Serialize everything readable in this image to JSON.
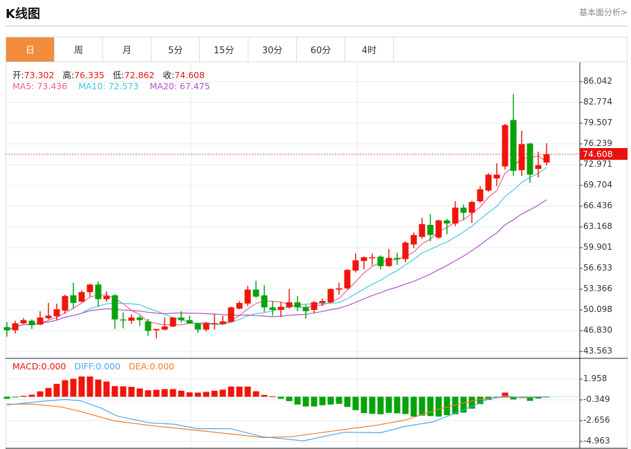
{
  "header": {
    "title": "K线图",
    "link": "基本面分析>"
  },
  "tabs": [
    {
      "label": "日",
      "active": true
    },
    {
      "label": "周"
    },
    {
      "label": "月"
    },
    {
      "label": "5分"
    },
    {
      "label": "15分"
    },
    {
      "label": "30分"
    },
    {
      "label": "60分"
    },
    {
      "label": "4时"
    }
  ],
  "info": {
    "open_label": "开:",
    "open": "73.302",
    "high_label": "高:",
    "high": "76.335",
    "low_label": "低:",
    "low": "72.862",
    "close_label": "收:",
    "close": "74.608",
    "ma5": "MA5: 73.436",
    "ma10": "MA10: 72.573",
    "ma20": "MA20: 67.475"
  },
  "macd_info": {
    "macd": "MACD:0.000",
    "diff": "DIFF:0.000",
    "dea": "DEA:0.000"
  },
  "colors": {
    "up": "#f0150a",
    "down": "#07a30b",
    "ma5": "#f0608a",
    "ma10": "#3ec8e0",
    "ma20": "#b152c9",
    "diff": "#4aa5f0",
    "dea": "#f57a20",
    "accent": "#f28c3c"
  },
  "chart_data": [
    {
      "type": "candlestick",
      "current_price": "74.608",
      "ylim": [
        43.563,
        86.042
      ],
      "y_ticks": [
        "86.042",
        "82.774",
        "79.507",
        "76.239",
        "72.971",
        "69.704",
        "66.436",
        "63.168",
        "59.901",
        "56.633",
        "53.366",
        "50.098",
        "46.830",
        "43.563"
      ],
      "ohlc": [
        [
          47.4,
          48.2,
          45.9,
          46.9
        ],
        [
          46.9,
          48.4,
          46.4,
          48.0
        ],
        [
          48.0,
          48.8,
          47.9,
          48.5
        ],
        [
          48.4,
          48.6,
          47.1,
          47.7
        ],
        [
          47.8,
          49.9,
          47.7,
          48.9
        ],
        [
          48.8,
          51.2,
          48.6,
          49.2
        ],
        [
          49.1,
          51.1,
          48.5,
          50.2
        ],
        [
          50.0,
          52.5,
          49.5,
          52.3
        ],
        [
          52.4,
          54.4,
          50.3,
          51.2
        ],
        [
          51.4,
          53.2,
          51.3,
          52.9
        ],
        [
          52.9,
          54.2,
          52.2,
          54.1
        ],
        [
          54.1,
          54.6,
          50.6,
          51.8
        ],
        [
          51.8,
          53.0,
          51.4,
          52.3
        ],
        [
          52.4,
          52.6,
          47.1,
          48.6
        ],
        [
          48.6,
          49.7,
          47.2,
          48.5
        ],
        [
          48.4,
          49.4,
          47.9,
          48.9
        ],
        [
          48.9,
          49.2,
          47.6,
          48.5
        ],
        [
          48.3,
          48.7,
          46.0,
          46.8
        ],
        [
          46.9,
          47.1,
          45.6,
          47.1
        ],
        [
          47.0,
          48.9,
          46.9,
          47.5
        ],
        [
          47.5,
          49.0,
          47.4,
          48.9
        ],
        [
          48.9,
          49.9,
          48.1,
          48.5
        ],
        [
          48.5,
          49.2,
          47.9,
          48.0
        ],
        [
          48.0,
          48.1,
          46.5,
          47.0
        ],
        [
          47.0,
          48.2,
          46.7,
          48.0
        ],
        [
          47.9,
          49.5,
          47.0,
          48.0
        ],
        [
          47.9,
          49.2,
          47.8,
          48.3
        ],
        [
          48.2,
          50.6,
          48.1,
          50.5
        ],
        [
          50.3,
          51.5,
          50.2,
          51.2
        ],
        [
          51.1,
          53.9,
          50.7,
          53.3
        ],
        [
          53.3,
          54.7,
          52.0,
          52.2
        ],
        [
          52.4,
          54.0,
          49.8,
          50.5
        ],
        [
          50.5,
          51.5,
          49.2,
          50.1
        ],
        [
          50.1,
          51.3,
          49.0,
          50.6
        ],
        [
          50.5,
          53.4,
          50.3,
          51.3
        ],
        [
          51.3,
          52.3,
          49.9,
          50.5
        ],
        [
          50.5,
          50.9,
          48.7,
          49.9
        ],
        [
          50.1,
          51.5,
          49.6,
          51.3
        ],
        [
          51.2,
          51.9,
          50.7,
          51.5
        ],
        [
          51.3,
          53.5,
          51.2,
          53.4
        ],
        [
          53.3,
          54.4,
          52.5,
          53.5
        ],
        [
          53.5,
          56.5,
          53.3,
          56.4
        ],
        [
          56.3,
          59.0,
          56.0,
          57.9
        ],
        [
          57.8,
          58.5,
          56.5,
          58.4
        ],
        [
          58.3,
          59.0,
          57.1,
          58.4
        ],
        [
          58.5,
          58.7,
          56.5,
          57.0
        ],
        [
          57.0,
          59.7,
          56.9,
          58.3
        ],
        [
          58.3,
          59.1,
          57.2,
          58.1
        ],
        [
          58.1,
          60.9,
          57.6,
          60.7
        ],
        [
          60.4,
          62.3,
          59.8,
          61.9
        ],
        [
          61.6,
          64.6,
          61.3,
          63.6
        ],
        [
          63.5,
          65.2,
          60.9,
          61.9
        ],
        [
          61.5,
          64.3,
          61.3,
          64.2
        ],
        [
          64.2,
          64.4,
          62.0,
          63.7
        ],
        [
          63.7,
          67.2,
          63.3,
          66.2
        ],
        [
          66.2,
          66.7,
          64.3,
          65.4
        ],
        [
          65.4,
          67.3,
          63.8,
          67.1
        ],
        [
          67.2,
          69.6,
          67.0,
          69.1
        ],
        [
          68.9,
          71.6,
          68.7,
          71.4
        ],
        [
          70.8,
          73.2,
          69.6,
          71.4
        ],
        [
          72.7,
          79.4,
          72.2,
          79.2
        ],
        [
          80.0,
          84.1,
          71.2,
          72.0
        ],
        [
          72.1,
          78.3,
          71.2,
          76.2
        ],
        [
          76.3,
          76.4,
          70.1,
          71.4
        ],
        [
          72.3,
          75.0,
          71.0,
          72.9
        ],
        [
          73.302,
          76.335,
          72.862,
          74.608
        ]
      ],
      "ma_periods": [
        5,
        10,
        20
      ]
    },
    {
      "type": "macd",
      "ylim": [
        -4.963,
        1.958
      ],
      "y_ticks": [
        "1.958",
        "-0.349",
        "-2.656",
        "-4.963"
      ],
      "histogram": [
        -0.23,
        -0.05,
        0.1,
        0.23,
        0.6,
        0.97,
        1.43,
        1.84,
        2.0,
        2.25,
        2.25,
        1.9,
        1.69,
        1.18,
        1.15,
        1.1,
        0.92,
        0.72,
        0.77,
        0.85,
        0.85,
        0.67,
        0.49,
        0.46,
        0.54,
        0.67,
        0.79,
        1.13,
        1.13,
        1.13,
        0.61,
        0.2,
        0.03,
        -0.23,
        -0.49,
        -0.87,
        -1.08,
        -1.08,
        -0.95,
        -0.87,
        -0.79,
        -1.13,
        -1.49,
        -1.82,
        -1.9,
        -1.95,
        -1.79,
        -1.84,
        -1.92,
        -2.2,
        -2.1,
        -2.15,
        -2.2,
        -2.05,
        -1.95,
        -1.77,
        -1.33,
        -0.82,
        -0.36,
        -0.1,
        0.46,
        -0.3,
        -0.15,
        -0.46,
        -0.2,
        -0.05
      ],
      "diff": [
        [
          0,
          -0.92
        ],
        [
          3.1,
          -0.6
        ],
        [
          7,
          -0.3
        ],
        [
          8.9,
          -0.45
        ],
        [
          11.3,
          -1.25
        ],
        [
          13.3,
          -2.15
        ],
        [
          17.2,
          -2.9
        ],
        [
          20.1,
          -3.05
        ],
        [
          23,
          -3.55
        ],
        [
          26.9,
          -3.55
        ],
        [
          30.8,
          -4.45
        ],
        [
          35.7,
          -4.9
        ],
        [
          40.6,
          -3.95
        ],
        [
          45,
          -4.0
        ],
        [
          47.9,
          -3.3
        ],
        [
          51.3,
          -2.8
        ],
        [
          54.2,
          -1.77
        ],
        [
          58.1,
          -0.23
        ],
        [
          60,
          0.1
        ],
        [
          62,
          -0.1
        ],
        [
          65,
          0
        ]
      ],
      "dea": [
        [
          0,
          -0.82
        ],
        [
          3.1,
          -0.82
        ],
        [
          6.5,
          -1.13
        ],
        [
          8.9,
          -1.64
        ],
        [
          12.8,
          -2.66
        ],
        [
          17.7,
          -3.25
        ],
        [
          23,
          -3.74
        ],
        [
          30.8,
          -4.53
        ],
        [
          34.2,
          -4.45
        ],
        [
          40.6,
          -3.64
        ],
        [
          44.5,
          -3.17
        ],
        [
          47.9,
          -2.61
        ],
        [
          51.8,
          -1.43
        ],
        [
          56.6,
          -0.36
        ],
        [
          59.6,
          -0.05
        ],
        [
          65,
          0
        ]
      ]
    }
  ]
}
